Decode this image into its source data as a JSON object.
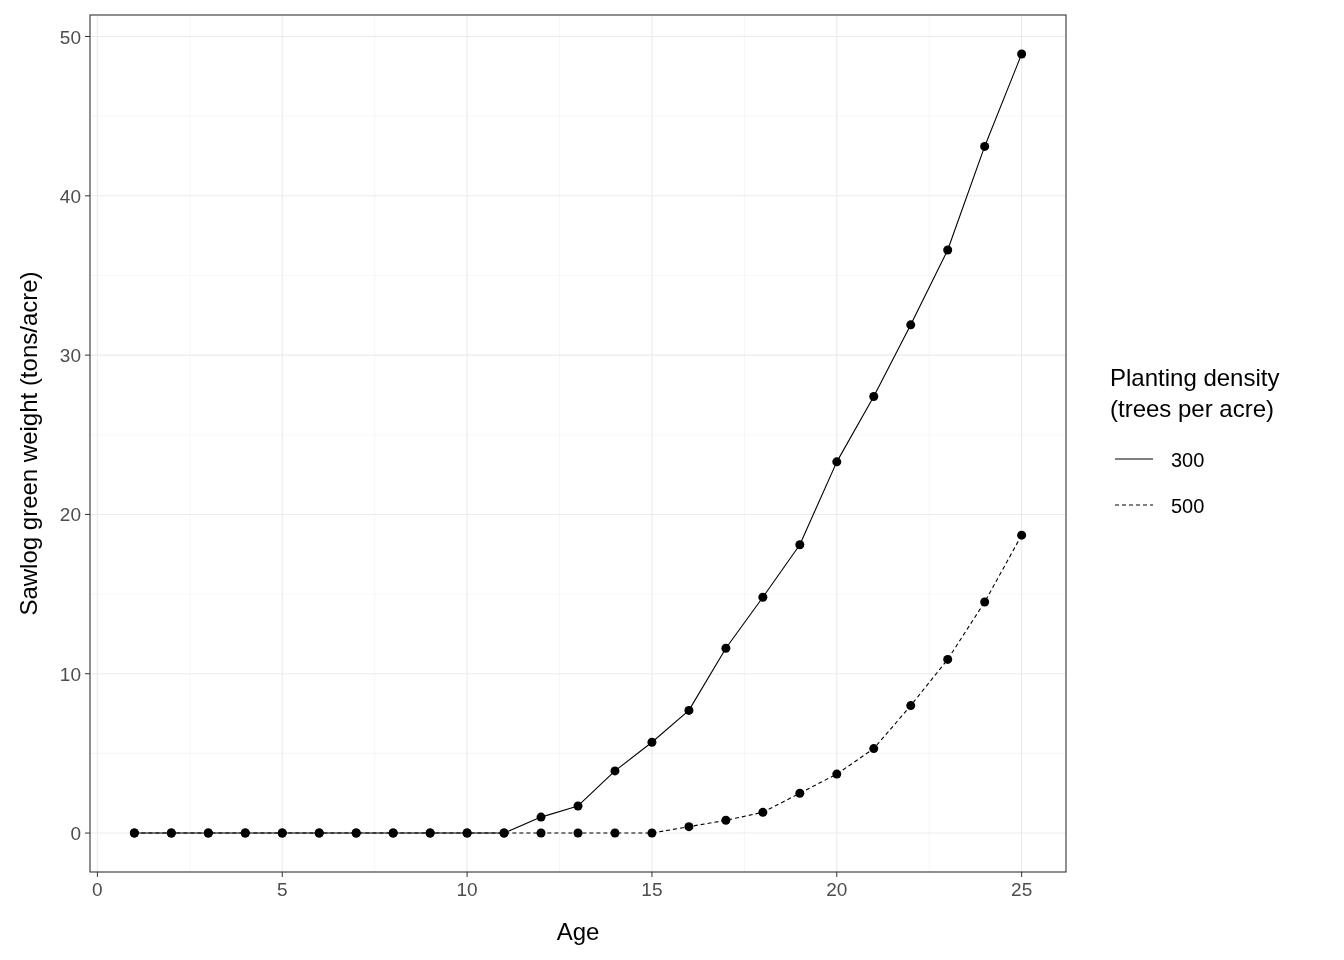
{
  "chart_data": {
    "type": "line",
    "xlabel": "Age",
    "ylabel": "Sawlog green weight (tons/acre)",
    "legend_title": "Planting density\n(trees per acre)",
    "x": [
      1,
      2,
      3,
      4,
      5,
      6,
      7,
      8,
      9,
      10,
      11,
      12,
      13,
      14,
      15,
      16,
      17,
      18,
      19,
      20,
      21,
      22,
      23,
      24,
      25
    ],
    "series": [
      {
        "name": "300",
        "color": "#000000",
        "line_style": "solid",
        "values": [
          0,
          0,
          0,
          0,
          0,
          0,
          0,
          0,
          0,
          0,
          0,
          1.0,
          1.7,
          3.9,
          5.7,
          7.7,
          11.6,
          14.8,
          18.1,
          23.3,
          27.4,
          31.9,
          36.6,
          43.1,
          48.9
        ]
      },
      {
        "name": "500",
        "color": "#000000",
        "line_style": "dashed",
        "values": [
          0,
          0,
          0,
          0,
          0,
          0,
          0,
          0,
          0,
          0,
          0,
          0,
          0,
          0,
          0,
          0.4,
          0.8,
          1.3,
          2.5,
          3.7,
          5.3,
          8.0,
          10.9,
          14.5,
          18.7
        ]
      }
    ],
    "xlim": [
      -0.2,
      26.2
    ],
    "ylim": [
      -2.445,
      51.35
    ],
    "xticks": [
      0,
      5,
      10,
      15,
      20,
      25
    ],
    "yticks": [
      0,
      10,
      20,
      30,
      40,
      50
    ],
    "grid": true,
    "legend": "right",
    "marker": "circle"
  }
}
